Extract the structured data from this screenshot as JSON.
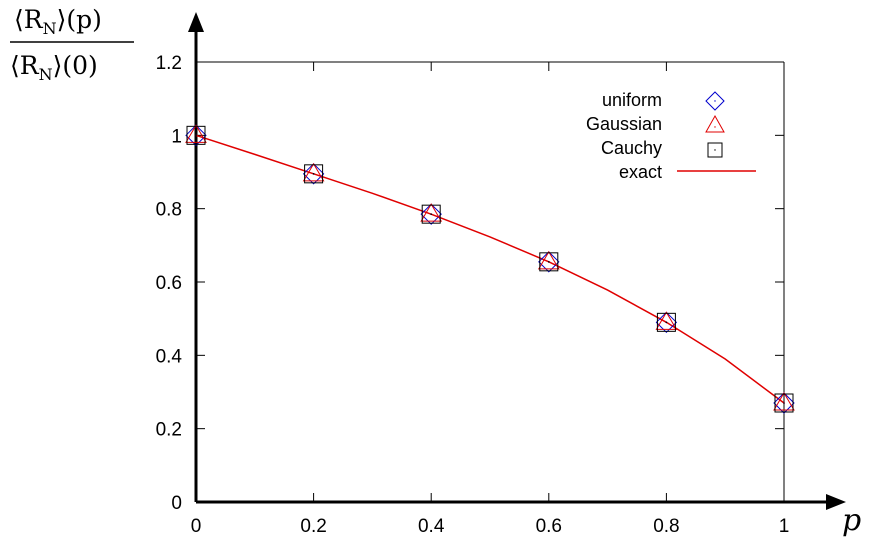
{
  "chart_data": {
    "type": "scatter",
    "xlabel": "p",
    "ylabel_numerator": "⟨R",
    "ylabel_numerator_sub": "N",
    "ylabel_numerator_tail": "⟩(p)",
    "ylabel_denominator": "⟨R",
    "ylabel_denominator_sub": "N",
    "ylabel_denominator_tail": "⟩(0)",
    "xlim": [
      0,
      1
    ],
    "ylim": [
      0,
      1.2
    ],
    "x_ticks": [
      "0",
      "0.2",
      "0.4",
      "0.6",
      "0.8",
      "1"
    ],
    "y_ticks": [
      "0",
      "0.2",
      "0.4",
      "0.6",
      "0.8",
      "1",
      "1.2"
    ],
    "x": [
      0,
      0.2,
      0.4,
      0.6,
      0.8,
      1.0
    ],
    "series": [
      {
        "name": "uniform",
        "marker": "diamond",
        "color": "#0000cc",
        "values": [
          1.0,
          0.895,
          0.785,
          0.655,
          0.49,
          0.27
        ]
      },
      {
        "name": "Gaussian",
        "marker": "triangle",
        "color": "#e00000",
        "values": [
          1.0,
          0.895,
          0.785,
          0.655,
          0.49,
          0.27
        ]
      },
      {
        "name": "Cauchy",
        "marker": "square",
        "color": "#000000",
        "values": [
          1.0,
          0.895,
          0.785,
          0.655,
          0.49,
          0.27
        ]
      },
      {
        "name": "exact",
        "marker": "line",
        "color": "#e00000",
        "x": [
          0,
          0.1,
          0.2,
          0.3,
          0.4,
          0.5,
          0.6,
          0.7,
          0.8,
          0.9,
          1.0
        ],
        "values": [
          1.0,
          0.948,
          0.895,
          0.842,
          0.785,
          0.723,
          0.655,
          0.578,
          0.49,
          0.39,
          0.27
        ]
      }
    ],
    "legend": "top-right",
    "grid": false
  }
}
